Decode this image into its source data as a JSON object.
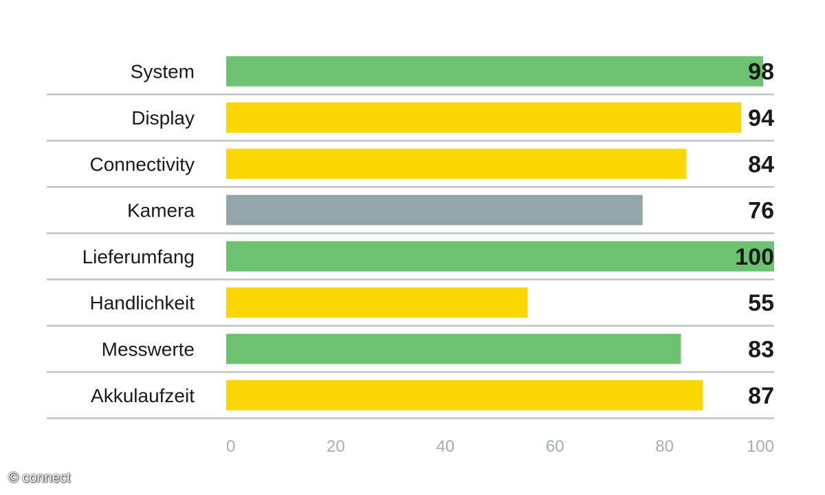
{
  "chart_data": {
    "type": "bar",
    "orientation": "horizontal",
    "categories": [
      "System",
      "Display",
      "Connectivity",
      "Kamera",
      "Lieferumfang",
      "Handlichkeit",
      "Messwerte",
      "Akkulaufzeit"
    ],
    "values": [
      98,
      94,
      84,
      76,
      100,
      55,
      83,
      87
    ],
    "value_labels": [
      "98",
      "94",
      "84",
      "76",
      "100",
      "55",
      "83",
      "87"
    ],
    "bar_colors": [
      "#6cc271",
      "#fcd600",
      "#fcd600",
      "#93a5a8",
      "#6cc271",
      "#fcd600",
      "#6cc271",
      "#fcd600"
    ],
    "xlim": [
      0,
      100
    ],
    "x_ticks": [
      "0",
      "20",
      "40",
      "60",
      "80",
      "100"
    ],
    "x_tick_values": [
      0,
      20,
      40,
      60,
      80,
      100
    ],
    "grid": false,
    "separator_color": "#bfc3c5",
    "tick_color": "#a0aeb4"
  },
  "credit": "© connect"
}
